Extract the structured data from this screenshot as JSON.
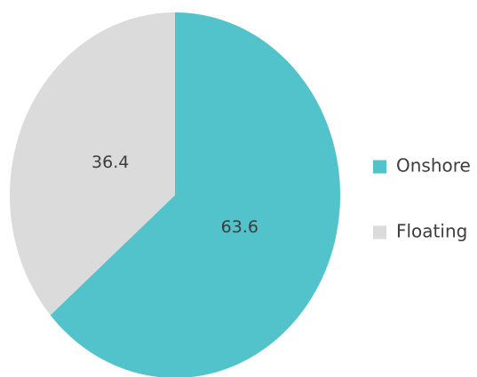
{
  "chart_data": {
    "type": "pie",
    "title": "",
    "categories": [
      "Onshore",
      "Floating"
    ],
    "values": [
      63.6,
      36.4
    ],
    "value_labels": [
      "63.6",
      "36.4"
    ],
    "colors": [
      "#52c3cb",
      "#dbdbdb"
    ],
    "start_angle": "12 o'clock",
    "direction": "clockwise",
    "legend": {
      "position": "right",
      "items": [
        {
          "label": "Onshore",
          "color": "#52c3cb"
        },
        {
          "label": "Floating",
          "color": "#dbdbdb"
        }
      ]
    }
  }
}
